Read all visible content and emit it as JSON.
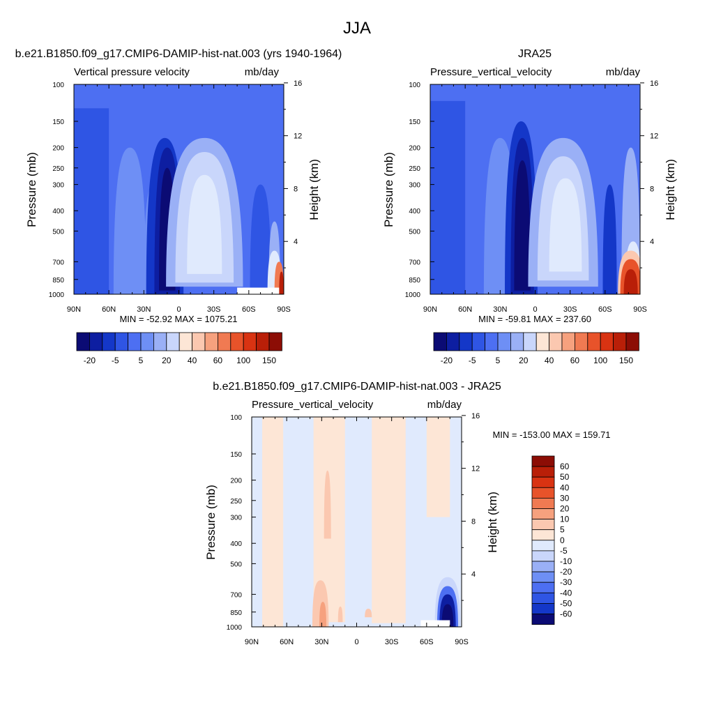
{
  "figure": {
    "title": "JJA"
  },
  "colors": {
    "cool": [
      "#0b0b74",
      "#0d1ea1",
      "#1437c8",
      "#2f55e4",
      "#4d6ff2",
      "#6e8ff5",
      "#9ab0f6",
      "#c9d6fb",
      "#e0eafd"
    ],
    "warm": [
      "#fde6d6",
      "#fbc8b0",
      "#f6a17e",
      "#f07a52",
      "#e8532a",
      "#d93312",
      "#b91f08",
      "#8c0d05"
    ]
  },
  "chart_data": [
    {
      "type": "heatmap",
      "id": "p1",
      "title": "b.e21.B1850.f09_g17.CMIP6-DAMIP-hist-nat.003 (yrs 1940-1964)",
      "variable_label": "Vertical pressure velocity",
      "units_label": "mb/day",
      "ylabel": "Pressure (mb)",
      "ylabel_right": "Height (km)",
      "x_ticks": [
        "90N",
        "60N",
        "30N",
        "0",
        "30S",
        "60S",
        "90S"
      ],
      "y_ticks": [
        "100",
        "150",
        "200",
        "250",
        "300",
        "400",
        "500",
        "700",
        "850",
        "1000"
      ],
      "y_ticks_right": [
        "16",
        "12",
        "8",
        "4"
      ],
      "stats": "MIN = -52.92  MAX = 1075.21",
      "colorbar": {
        "orientation": "horizontal",
        "labels": [
          "-20",
          "-5",
          "5",
          "20",
          "40",
          "60",
          "100",
          "150"
        ]
      },
      "field_summary": [
        {
          "feature": "strong descent max (dark blue) near 10N",
          "lat_range": [
            "20N",
            "5N"
          ],
          "p_range": [
            200,
            1000
          ]
        },
        {
          "feature": "weaker values (light blue) near 20S",
          "lat_range": [
            "10S",
            "35S"
          ],
          "p_range": [
            180,
            900
          ]
        },
        {
          "feature": "positive (red) values near Antarctic surface",
          "lat_range": [
            "65S",
            "90S"
          ],
          "p_range": [
            700,
            1000
          ]
        }
      ]
    },
    {
      "type": "heatmap",
      "id": "p2",
      "title": "JRA25",
      "variable_label": "Pressure_vertical_velocity",
      "units_label": "mb/day",
      "ylabel": "Pressure (mb)",
      "ylabel_right": "Height (km)",
      "x_ticks": [
        "90N",
        "60N",
        "30N",
        "0",
        "30S",
        "60S",
        "90S"
      ],
      "y_ticks": [
        "100",
        "150",
        "200",
        "250",
        "300",
        "400",
        "500",
        "700",
        "850",
        "1000"
      ],
      "y_ticks_right": [
        "16",
        "12",
        "8",
        "4"
      ],
      "stats": "MIN = -59.81  MAX = 237.60",
      "colorbar": {
        "orientation": "horizontal",
        "labels": [
          "-20",
          "-5",
          "5",
          "20",
          "40",
          "60",
          "100",
          "150"
        ]
      },
      "field_summary": [
        {
          "feature": "strong descent max (dark blue) near 10N",
          "lat_range": [
            "20N",
            "5N"
          ],
          "p_range": [
            150,
            1000
          ]
        },
        {
          "feature": "weaker values (light blue) near 20S",
          "lat_range": [
            "10S",
            "35S"
          ],
          "p_range": [
            200,
            850
          ]
        },
        {
          "feature": "positive (red) values near Antarctic surface",
          "lat_range": [
            "70S",
            "90S"
          ],
          "p_range": [
            650,
            1000
          ]
        }
      ]
    },
    {
      "type": "heatmap",
      "id": "p3",
      "title": "b.e21.B1850.f09_g17.CMIP6-DAMIP-hist-nat.003 - JRA25",
      "variable_label": "Pressure_vertical_velocity",
      "units_label": "mb/day",
      "ylabel": "Pressure (mb)",
      "ylabel_right": "Height (km)",
      "x_ticks": [
        "90N",
        "60N",
        "30N",
        "0",
        "30S",
        "60S",
        "90S"
      ],
      "y_ticks": [
        "100",
        "150",
        "200",
        "250",
        "300",
        "400",
        "500",
        "700",
        "850",
        "1000"
      ],
      "y_ticks_right": [
        "16",
        "12",
        "8",
        "4"
      ],
      "stats": "MIN = -153.00  MAX = 159.71",
      "colorbar": {
        "orientation": "vertical",
        "labels": [
          "60",
          "50",
          "40",
          "30",
          "20",
          "10",
          "5",
          "0",
          "-5",
          "-10",
          "-20",
          "-30",
          "-40",
          "-50",
          "-60"
        ]
      },
      "field_summary": [
        {
          "feature": "alternating 0 to 5 (light orange) and -5 to 0 (light blue) bands",
          "lat_range": [
            "90N",
            "60S"
          ],
          "p_range": [
            100,
            1000
          ]
        },
        {
          "feature": "positive differences near 35N and 25N lower troposphere",
          "lat_range": [
            "40N",
            "20N"
          ],
          "p_range": [
            600,
            1000
          ]
        },
        {
          "feature": "strong negative differences near Antarctic surface",
          "lat_range": [
            "70S",
            "85S"
          ],
          "p_range": [
            650,
            950
          ]
        }
      ]
    }
  ]
}
